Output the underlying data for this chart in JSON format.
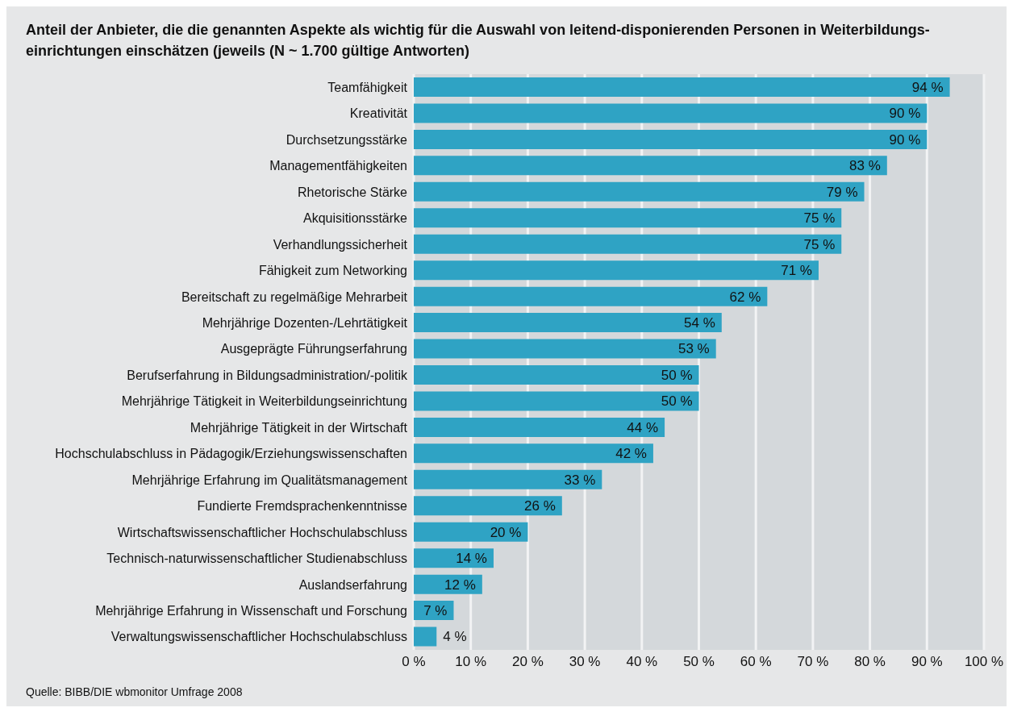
{
  "chart_data": {
    "type": "bar",
    "orientation": "horizontal",
    "title": "Anteil der Anbieter, die die genannten Aspekte als wichtig für die Auswahl von leitend-disponierenden Personen in Weiterbildungs-einrichtungen einschätzen (jeweils (N ~ 1.700 gültige Antworten)",
    "categories": [
      "Teamfähigkeit",
      "Kreativität",
      "Durchsetzungsstärke",
      "Managementfähigkeiten",
      "Rhetorische Stärke",
      "Akquisitionsstärke",
      "Verhandlungssicherheit",
      "Fähigkeit zum Networking",
      "Bereitschaft zu regelmäßige Mehrarbeit",
      "Mehrjährige Dozenten-/Lehrtätigkeit",
      "Ausgeprägte Führungserfahrung",
      "Berufserfahrung in Bildungsadministration/-politik",
      "Mehrjährige Tätigkeit in Weiterbildungseinrichtung",
      "Mehrjährige Tätigkeit in der Wirtschaft",
      "Hochschulabschluss in Pädagogik/Erziehungswissenschaften",
      "Mehrjährige Erfahrung im Qualitätsmanagement",
      "Fundierte Fremdsprachenkenntnisse",
      "Wirtschaftswissenschaftlicher Hochschulabschluss",
      "Technisch-naturwissenschaftlicher Studienabschluss",
      "Auslandserfahrung",
      "Mehrjährige Erfahrung in Wissenschaft und Forschung",
      "Verwaltungswissenschaftlicher Hochschulabschluss"
    ],
    "values": [
      94,
      90,
      90,
      83,
      79,
      75,
      75,
      71,
      62,
      54,
      53,
      50,
      50,
      44,
      42,
      33,
      26,
      20,
      14,
      12,
      7,
      4
    ],
    "value_labels": [
      "94 %",
      "90 %",
      "90 %",
      "83 %",
      "79 %",
      "75 %",
      "75 %",
      "71 %",
      "62 %",
      "54 %",
      "53 %",
      "50 %",
      "50 %",
      "44 %",
      "42 %",
      "33 %",
      "26 %",
      "20 %",
      "14 %",
      "12 %",
      "7 %",
      "4 %"
    ],
    "color": "#2fa3c4",
    "xlim": [
      0,
      100
    ],
    "xticks": [
      {
        "value": 0,
        "label": "0 %"
      },
      {
        "value": 10,
        "label": "10 %"
      },
      {
        "value": 20,
        "label": "20 %"
      },
      {
        "value": 30,
        "label": "30 %"
      },
      {
        "value": 40,
        "label": "40 %"
      },
      {
        "value": 50,
        "label": "50 %"
      },
      {
        "value": 60,
        "label": "60 %"
      },
      {
        "value": 70,
        "label": "70 %"
      },
      {
        "value": 80,
        "label": "80 %"
      },
      {
        "value": 90,
        "label": "90 %"
      },
      {
        "value": 100,
        "label": "100 %"
      }
    ],
    "grid": "x",
    "annotations": [
      "Quelle: BIBB/DIE wbmonitor Umfrage 2008"
    ]
  }
}
